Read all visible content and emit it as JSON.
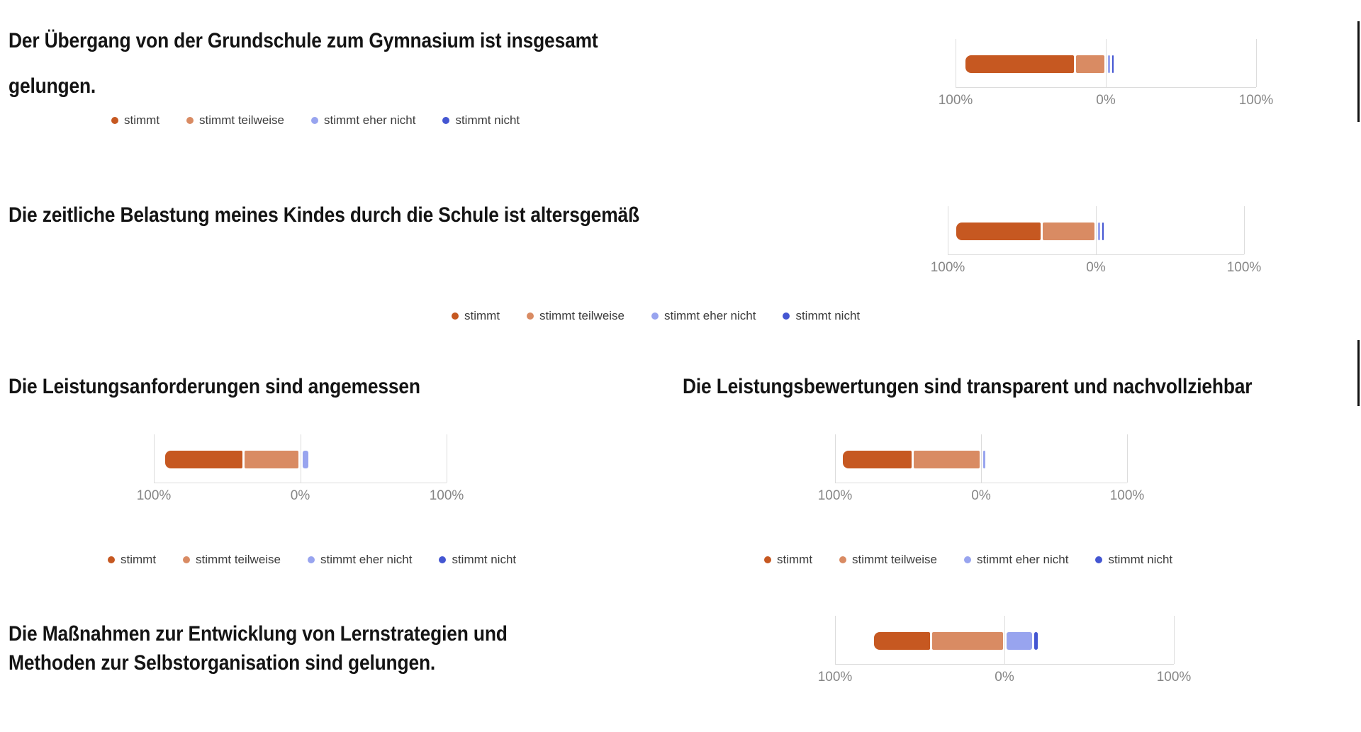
{
  "report": {
    "axis_ticks": [
      "100%",
      "0%",
      "100%"
    ],
    "legend_items": [
      {
        "label": "stimmt",
        "color": "#c65821"
      },
      {
        "label": "stimmt teilweise",
        "color": "#d98b63"
      },
      {
        "label": "stimmt eher nicht",
        "color": "#98a4ef"
      },
      {
        "label": "stimmt nicht",
        "color": "#4456d2"
      }
    ]
  },
  "questions": [
    {
      "title_lines": [
        "Der Übergang von der Grundschule zum Gymnasium ist insgesamt",
        "gelungen."
      ]
    },
    {
      "title_lines": [
        "Die zeitliche Belastung meines Kindes durch die Schule ist altersgemäß"
      ]
    },
    {
      "title_lines": [
        "Die Leistungsanforderungen sind angemessen"
      ]
    },
    {
      "title_lines": [
        "Die Leistungsbewertungen sind transparent und nachvollziehbar"
      ]
    },
    {
      "title_lines": [
        "Die Maßnahmen zur Entwicklung von Lernstrategien und",
        "Methoden zur Selbstorganisation sind gelungen."
      ]
    }
  ],
  "chart_data": [
    {
      "type": "bar",
      "subtype": "diverging_stacked_horizontal",
      "question": "Der Übergang von der Grundschule zum Gymnasium ist insgesamt gelungen.",
      "categories": [
        "stimmt",
        "stimmt teilweise",
        "stimmt eher nicht",
        "stimmt nicht"
      ],
      "values": [
        72,
        19,
        1,
        1
      ],
      "axis_ticks": [
        "100%",
        "0%",
        "100%"
      ],
      "axis_range": [
        -100,
        100
      ],
      "legend_position": "below-question-left"
    },
    {
      "type": "bar",
      "subtype": "diverging_stacked_horizontal",
      "question": "Die zeitliche Belastung meines Kindes durch die Schule ist altersgemäß",
      "categories": [
        "stimmt",
        "stimmt teilweise",
        "stimmt eher nicht",
        "stimmt nicht"
      ],
      "values": [
        57,
        35,
        1,
        1
      ],
      "axis_ticks": [
        "100%",
        "0%",
        "100%"
      ],
      "axis_range": [
        -100,
        100
      ],
      "legend_position": "below-center"
    },
    {
      "type": "bar",
      "subtype": "diverging_stacked_horizontal",
      "question": "Die Leistungsanforderungen sind angemessen",
      "categories": [
        "stimmt",
        "stimmt teilweise",
        "stimmt eher nicht",
        "stimmt nicht"
      ],
      "values": [
        53,
        37,
        4,
        0
      ],
      "axis_ticks": [
        "100%",
        "0%",
        "100%"
      ],
      "axis_range": [
        -100,
        100
      ],
      "legend_position": "below-left"
    },
    {
      "type": "bar",
      "subtype": "diverging_stacked_horizontal",
      "question": "Die Leistungsbewertungen sind transparent und nachvollziehbar",
      "categories": [
        "stimmt",
        "stimmt teilweise",
        "stimmt eher nicht",
        "stimmt nicht"
      ],
      "values": [
        47,
        45,
        1,
        0
      ],
      "axis_ticks": [
        "100%",
        "0%",
        "100%"
      ],
      "axis_range": [
        -100,
        100
      ],
      "legend_position": "below-right"
    },
    {
      "type": "bar",
      "subtype": "diverging_stacked_horizontal",
      "question": "Die Maßnahmen zur Entwicklung von Lernstrategien und Methoden zur Selbstorganisation sind gelungen.",
      "categories": [
        "stimmt",
        "stimmt teilweise",
        "stimmt eher nicht",
        "stimmt nicht"
      ],
      "values": [
        33,
        42,
        15,
        2
      ],
      "axis_ticks": [
        "100%",
        "0%",
        "100%"
      ],
      "axis_range": [
        -100,
        100
      ],
      "legend_position": "none"
    }
  ]
}
